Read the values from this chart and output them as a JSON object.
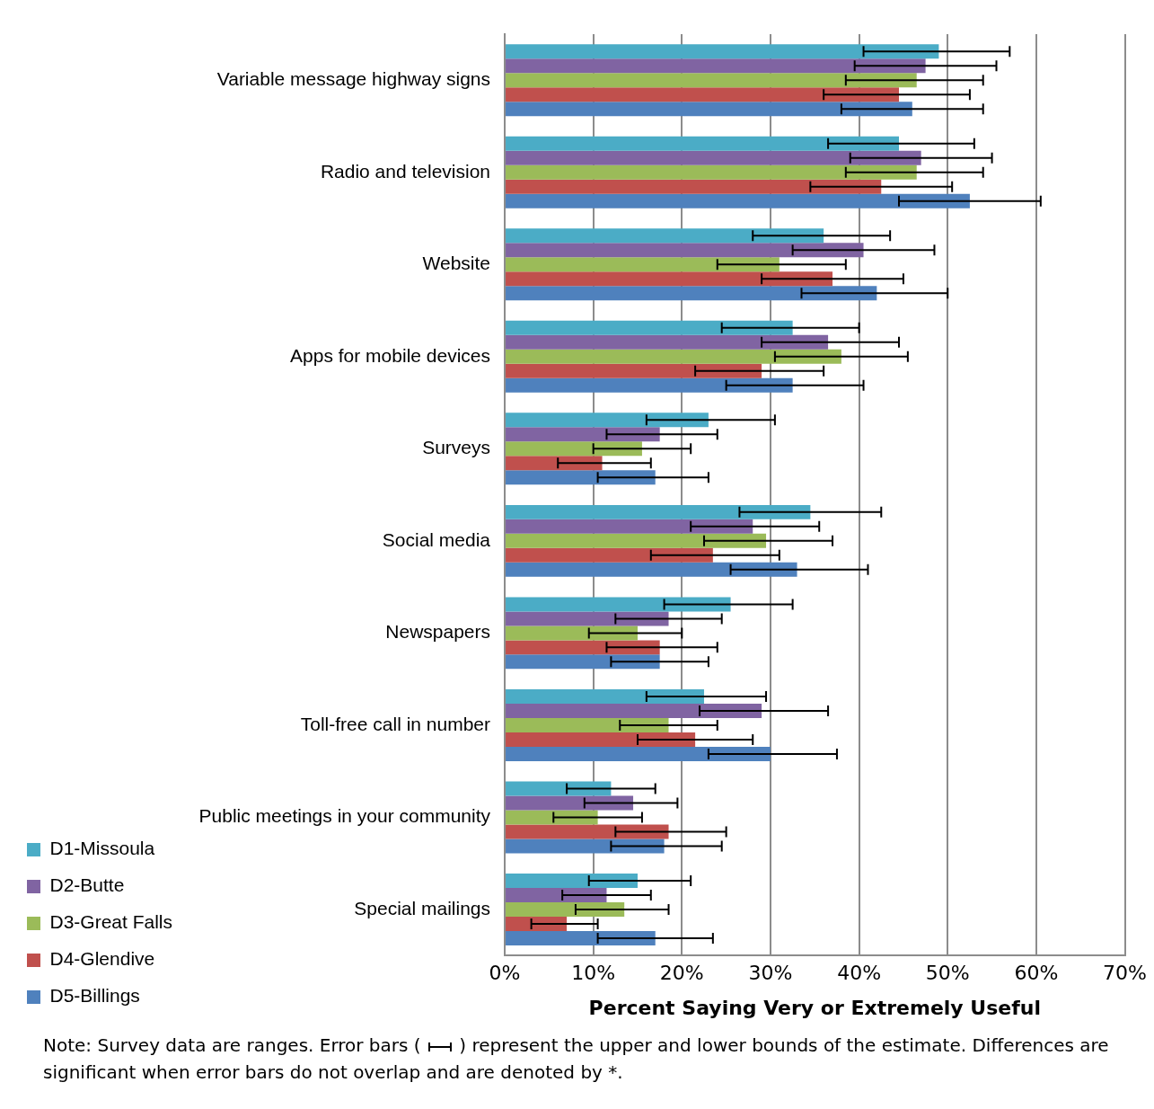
{
  "chart_data": {
    "type": "bar",
    "orientation": "horizontal",
    "xlabel": "Percent Saying Very or Extremely Useful",
    "categories": [
      "Variable message highway signs",
      "Radio and television",
      "Website",
      "Apps for mobile devices",
      "Surveys",
      "Social media",
      "Newspapers",
      "Toll-free call in number",
      "Public meetings in your community",
      "Special mailings"
    ],
    "series": [
      {
        "name": "D1-Missoula",
        "color": "#4bacc6",
        "values": [
          49,
          44.5,
          36,
          32.5,
          23,
          34.5,
          25.5,
          22.5,
          12,
          15
        ],
        "errors": [
          [
            40.5,
            57
          ],
          [
            36.5,
            53
          ],
          [
            28,
            43.5
          ],
          [
            24.5,
            40
          ],
          [
            16,
            30.5
          ],
          [
            26.5,
            42.5
          ],
          [
            18,
            32.5
          ],
          [
            16,
            29.5
          ],
          [
            7,
            17
          ],
          [
            9.5,
            21
          ]
        ]
      },
      {
        "name": "D2-Butte",
        "color": "#8064a2",
        "values": [
          47.5,
          47,
          40.5,
          36.5,
          17.5,
          28,
          18.5,
          29,
          14.5,
          11.5
        ],
        "errors": [
          [
            39.5,
            55.5
          ],
          [
            39,
            55
          ],
          [
            32.5,
            48.5
          ],
          [
            29,
            44.5
          ],
          [
            11.5,
            24
          ],
          [
            21,
            35.5
          ],
          [
            12.5,
            24.5
          ],
          [
            22,
            36.5
          ],
          [
            9,
            19.5
          ],
          [
            6.5,
            16.5
          ]
        ]
      },
      {
        "name": "D3-Great Falls",
        "color": "#9bbb59",
        "values": [
          46.5,
          46.5,
          31,
          38,
          15.5,
          29.5,
          15,
          18.5,
          10.5,
          13.5
        ],
        "errors": [
          [
            38.5,
            54
          ],
          [
            38.5,
            54
          ],
          [
            24,
            38.5
          ],
          [
            30.5,
            45.5
          ],
          [
            10,
            21
          ],
          [
            22.5,
            37
          ],
          [
            9.5,
            20
          ],
          [
            13,
            24
          ],
          [
            5.5,
            15.5
          ],
          [
            8,
            18.5
          ]
        ]
      },
      {
        "name": "D4-Glendive",
        "color": "#c0504d",
        "values": [
          44.5,
          42.5,
          37,
          29,
          11,
          23.5,
          17.5,
          21.5,
          18.5,
          7
        ],
        "errors": [
          [
            36,
            52.5
          ],
          [
            34.5,
            50.5
          ],
          [
            29,
            45
          ],
          [
            21.5,
            36
          ],
          [
            6,
            16.5
          ],
          [
            16.5,
            31
          ],
          [
            11.5,
            24
          ],
          [
            15,
            28
          ],
          [
            12.5,
            25
          ],
          [
            3,
            10.5
          ]
        ]
      },
      {
        "name": "D5-Billings",
        "color": "#4f81bd",
        "values": [
          46,
          52.5,
          42,
          32.5,
          17,
          33,
          17.5,
          30,
          18,
          17
        ],
        "errors": [
          [
            38,
            54
          ],
          [
            44.5,
            60.5
          ],
          [
            33.5,
            50
          ],
          [
            25,
            40.5
          ],
          [
            10.5,
            23
          ],
          [
            25.5,
            41
          ],
          [
            12,
            23
          ],
          [
            23,
            37.5
          ],
          [
            12,
            24.5
          ],
          [
            10.5,
            23.5
          ]
        ]
      }
    ],
    "xlim": [
      0,
      70
    ],
    "xticks": [
      {
        "value": 0,
        "label": "0%"
      },
      {
        "value": 10,
        "label": "10%"
      },
      {
        "value": 20,
        "label": "20%"
      },
      {
        "value": 30,
        "label": "30%"
      },
      {
        "value": 40,
        "label": "40%"
      },
      {
        "value": 50,
        "label": "50%"
      },
      {
        "value": 60,
        "label": "60%"
      },
      {
        "value": 70,
        "label": "70%"
      }
    ],
    "grid": "x",
    "legend": "bottom left",
    "annotations": [
      "Note:  Survey data are ranges.  Error bars (",
      ") represent the upper and lower bounds of the estimate. Differences are significant when error bars do not overlap and are denoted by *."
    ]
  }
}
